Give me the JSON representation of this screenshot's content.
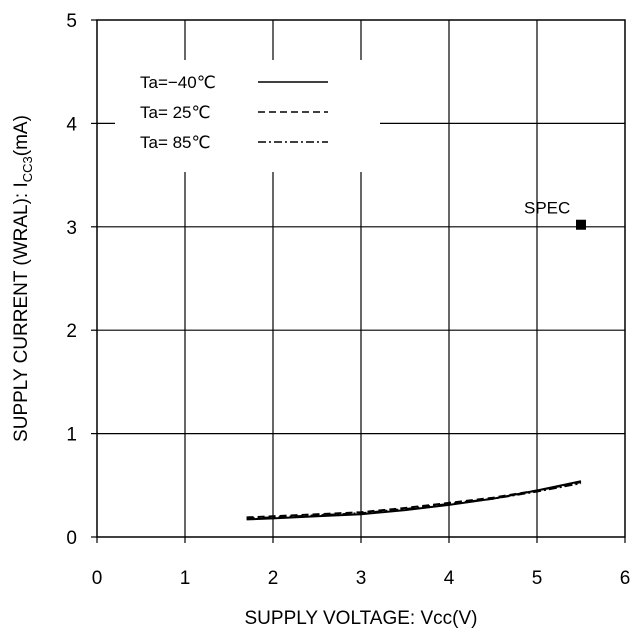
{
  "chart_data": {
    "type": "line",
    "xlabel": "SUPPLY VOLTAGE: Vcc(V)",
    "ylabel_prefix": "SUPPLY CURRENT (WRAL): I",
    "ylabel_sub": "CC3",
    "ylabel_suffix": "(mA)",
    "xlim": [
      0,
      6
    ],
    "ylim": [
      0,
      5
    ],
    "xticks": [
      "0",
      "1",
      "2",
      "3",
      "4",
      "5",
      "6"
    ],
    "yticks": [
      "0",
      "1",
      "2",
      "3",
      "4",
      "5"
    ],
    "grid": true,
    "legend_position": "top-left",
    "series": [
      {
        "name": "Ta=−40℃",
        "dash": "solid",
        "x": [
          1.7,
          2.0,
          2.5,
          3.0,
          3.5,
          4.0,
          4.5,
          5.0,
          5.5
        ],
        "y": [
          0.17,
          0.18,
          0.2,
          0.22,
          0.26,
          0.31,
          0.37,
          0.45,
          0.54
        ]
      },
      {
        "name": "Ta= 25℃",
        "dash": "dashed",
        "x": [
          1.7,
          2.0,
          2.5,
          3.0,
          3.5,
          4.0,
          4.5,
          5.0,
          5.5
        ],
        "y": [
          0.19,
          0.2,
          0.22,
          0.24,
          0.28,
          0.33,
          0.38,
          0.45,
          0.53
        ]
      },
      {
        "name": "Ta= 85℃",
        "dash": "dashdot",
        "x": [
          1.7,
          2.0,
          2.5,
          3.0,
          3.5,
          4.0,
          4.5,
          5.0,
          5.5
        ],
        "y": [
          0.18,
          0.19,
          0.21,
          0.23,
          0.27,
          0.32,
          0.37,
          0.44,
          0.52
        ]
      }
    ],
    "annotations": [
      {
        "label": "SPEC",
        "x": 5.5,
        "y": 3.02,
        "marker": "square"
      }
    ]
  }
}
